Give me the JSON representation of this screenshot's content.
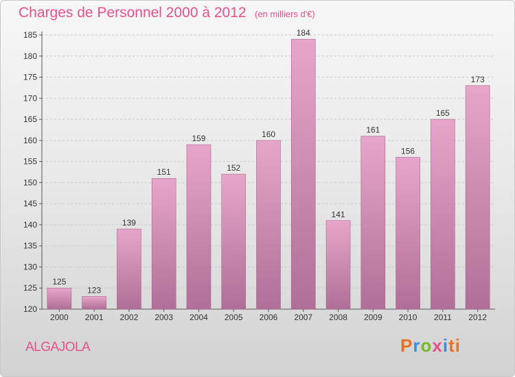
{
  "header": {
    "title": "Charges de Personnel 2000 à 2012",
    "subtitle": "(en milliers d'€)"
  },
  "footer": {
    "commune": "ALGAJOLA",
    "logo_letters": [
      "P",
      "r",
      "o",
      "x",
      "i",
      "ti"
    ]
  },
  "colors": {
    "bar_top": "#e7a6c9",
    "bar_bottom": "#b06f97",
    "accent": "#e4518c"
  },
  "chart_data": {
    "type": "bar",
    "title": "Charges de Personnel 2000 à 2012",
    "subtitle": "(en milliers d'€)",
    "categories": [
      "2000",
      "2001",
      "2002",
      "2003",
      "2004",
      "2005",
      "2006",
      "2007",
      "2008",
      "2009",
      "2010",
      "2011",
      "2012"
    ],
    "values": [
      125,
      123,
      139,
      151,
      159,
      152,
      160,
      184,
      141,
      161,
      156,
      165,
      173
    ],
    "ylim": [
      120,
      185
    ],
    "yticks": [
      120,
      125,
      130,
      135,
      140,
      145,
      150,
      155,
      160,
      165,
      170,
      175,
      180,
      185
    ],
    "grid": true,
    "legend": "none",
    "xlabel": "",
    "ylabel": ""
  }
}
